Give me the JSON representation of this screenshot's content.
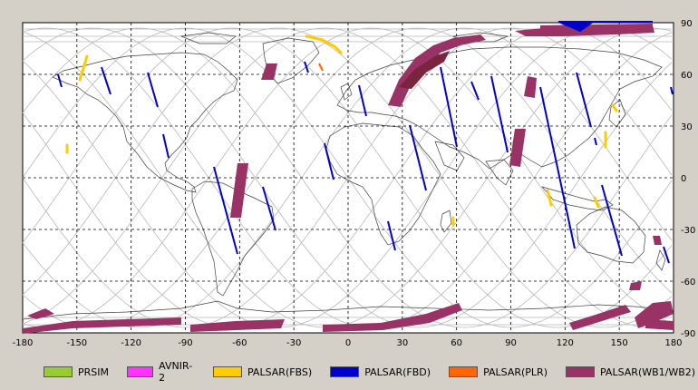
{
  "map": {
    "x_ticks": [
      "-180",
      "-150",
      "-120",
      "-90",
      "-60",
      "-30",
      "0",
      "30",
      "60",
      "90",
      "120",
      "150",
      "180"
    ],
    "y_ticks": [
      "90",
      "60",
      "30",
      "0",
      "-30",
      "-60",
      "-90"
    ]
  },
  "legend": [
    {
      "label": "PRSIM",
      "color": "#99cc33"
    },
    {
      "label": "AVNIR-2",
      "color": "#ff33ff"
    },
    {
      "label": "PALSAR(FBS)",
      "color": "#ffcc00"
    },
    {
      "label": "PALSAR(FBD)",
      "color": "#0000cc"
    },
    {
      "label": "PALSAR(PLR)",
      "color": "#ff6600"
    },
    {
      "label": "PALSAR(WB1/WB2)",
      "color": "#993366"
    }
  ],
  "colors": {
    "fbd": "#0000cc",
    "fbs": "#ffcc00",
    "plr": "#ff6600",
    "wb": "#993366",
    "track": "#b0b0b0",
    "coast": "#404040",
    "grid": "#000000"
  }
}
